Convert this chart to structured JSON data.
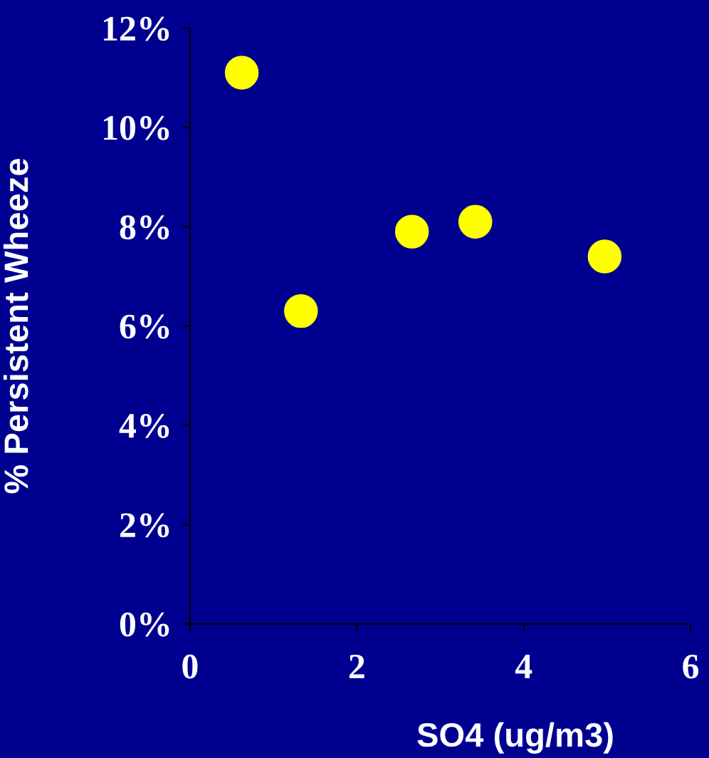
{
  "chart_data": {
    "type": "scatter",
    "xlabel": "SO4 (ug/m3)",
    "ylabel": "% Persistent Wheeze",
    "x": [
      0.62,
      1.33,
      2.66,
      3.42,
      4.97
    ],
    "series": [
      {
        "color": "#ffff00",
        "values": [
          11.1,
          6.3,
          7.9,
          8.1,
          7.4
        ]
      }
    ],
    "xlim": [
      0,
      6
    ],
    "xticks": [
      0,
      2,
      4,
      6
    ],
    "ylim": [
      0,
      12
    ],
    "yticks": [
      {
        "value": 0,
        "label": "0%"
      },
      {
        "value": 2,
        "label": "2%"
      },
      {
        "value": 4,
        "label": "4%"
      },
      {
        "value": 6,
        "label": "6%"
      },
      {
        "value": 8,
        "label": "8%"
      },
      {
        "value": 10,
        "label": "10%"
      },
      {
        "value": 12,
        "label": "12%"
      }
    ],
    "marker": "circle",
    "grid": false,
    "legend": false
  }
}
